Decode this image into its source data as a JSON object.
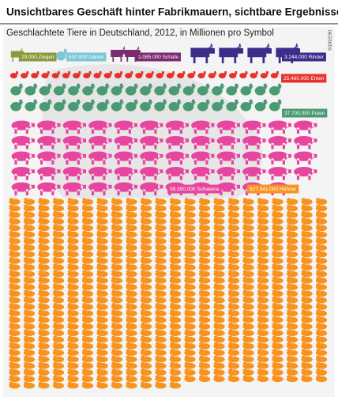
{
  "chart_data": {
    "type": "pictograph",
    "title": "Unsichtbares Geschäft hinter Fabrikmauern, sichtbare Ergebnisse im Supermarkt",
    "subtitle": "Geschlachtete Tiere in Deutschland, 2012, in Millionen pro Symbol",
    "source": "DESTATIS",
    "values": [
      0.029,
      0.53,
      1.085,
      3.244,
      25.46,
      37.7,
      58.35,
      627.941
    ],
    "value_labels": [
      "29.000 Ziegen",
      "530.000 Gänse",
      "1.085.000 Schafe",
      "3.244.000 Rinder",
      "25.460.000 Enten",
      "37.700.000 Puten",
      "58.350.000 Schweine",
      "627.941.000 Hühner"
    ],
    "colors": [
      "#8a9a3a",
      "#7cc6d6",
      "#7b2c6f",
      "#3c2d8a",
      "#e8312a",
      "#4a9b72",
      "#e8459e",
      "#f7931e"
    ]
  }
}
